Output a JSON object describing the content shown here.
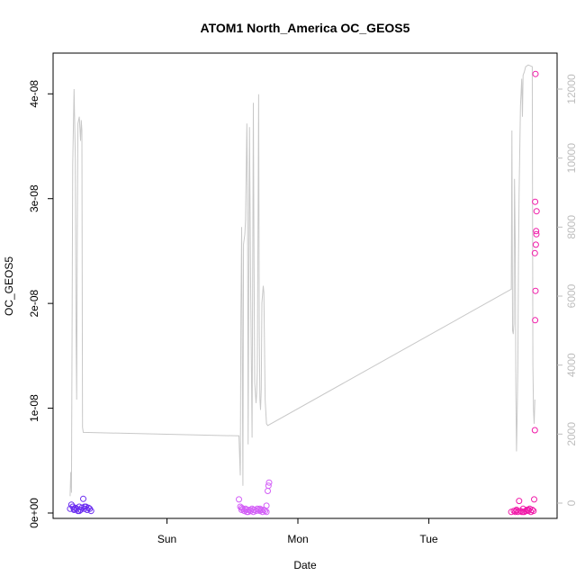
{
  "chart_data": {
    "type": "scatter",
    "title": "ATOM1 North_America OC_GEOS5",
    "xlabel": "Date",
    "ylabel": "OC_GEOS5",
    "x_ticks": [
      "Sun",
      "Mon",
      "Tue"
    ],
    "x_tick_days": [
      1,
      2,
      3
    ],
    "xlim_days": [
      0.13,
      3.98
    ],
    "ylim": [
      0,
      4.2e-08
    ],
    "y_ticks": [
      "0e+00",
      "1e-08",
      "2e-08",
      "3e-08",
      "4e-08"
    ],
    "y_tick_values": [
      0,
      1e-08,
      2e-08,
      3e-08,
      4e-08
    ],
    "y2lim": [
      0,
      12800
    ],
    "y2_ticks": [
      "0",
      "2000",
      "4000",
      "6000",
      "8000",
      "10000",
      "12000"
    ],
    "y2_tick_values": [
      0,
      2000,
      4000,
      6000,
      8000,
      10000,
      12000
    ],
    "grid": false,
    "colors": {
      "points_day1": "#6a2cf0",
      "points_day2": "#d35ef7",
      "points_day3": "#f01aa8",
      "altitude_line": "#c8c8c8",
      "axis": "#000000",
      "right_axis": "#bdbdbd"
    },
    "series": [
      {
        "points": [
          [
            0.26,
            4e-10
          ],
          [
            0.27,
            8e-10
          ],
          [
            0.28,
            6e-10
          ],
          [
            0.29,
            3e-10
          ],
          [
            0.3,
            5e-10
          ],
          [
            0.31,
            4e-10
          ],
          [
            0.32,
            2e-10
          ],
          [
            0.33,
            6e-10
          ],
          [
            0.34,
            3e-10
          ],
          [
            0.35,
            5e-10
          ],
          [
            0.36,
            1.35e-09
          ],
          [
            0.37,
            4e-10
          ],
          [
            0.38,
            6e-10
          ],
          [
            0.39,
            3e-10
          ],
          [
            0.4,
            5e-10
          ],
          [
            0.41,
            4e-10
          ],
          [
            0.42,
            2e-10
          ],
          [
            0.29,
            4e-10
          ],
          [
            0.33,
            2e-10
          ],
          [
            0.37,
            6e-10
          ]
        ]
      },
      {
        "points": [
          [
            1.55,
            1.3e-09
          ],
          [
            1.56,
            6e-10
          ],
          [
            1.57,
            3e-10
          ],
          [
            1.58,
            4e-10
          ],
          [
            1.59,
            2e-10
          ],
          [
            1.6,
            4e-10
          ],
          [
            1.61,
            3e-10
          ],
          [
            1.62,
            1e-10
          ],
          [
            1.63,
            3e-10
          ],
          [
            1.64,
            2e-10
          ],
          [
            1.65,
            4e-10
          ],
          [
            1.66,
            1e-10
          ],
          [
            1.67,
            3e-10
          ],
          [
            1.68,
            2e-10
          ],
          [
            1.69,
            4e-10
          ],
          [
            1.7,
            3e-10
          ],
          [
            1.71,
            2e-10
          ],
          [
            1.72,
            3e-10
          ],
          [
            1.73,
            1e-10
          ],
          [
            1.74,
            3e-10
          ],
          [
            1.75,
            2e-10
          ],
          [
            1.76,
            7e-10
          ],
          [
            1.77,
            2.1e-09
          ],
          [
            1.775,
            2.6e-09
          ],
          [
            1.78,
            2.9e-09
          ],
          [
            1.57,
            5e-10
          ],
          [
            1.61,
            1e-10
          ],
          [
            1.66,
            3e-10
          ],
          [
            1.71,
            4e-10
          ],
          [
            1.76,
            1e-10
          ]
        ]
      },
      {
        "points": [
          [
            3.63,
            1e-10
          ],
          [
            3.65,
            2e-10
          ],
          [
            3.66,
            1e-10
          ],
          [
            3.67,
            3e-10
          ],
          [
            3.68,
            1e-10
          ],
          [
            3.69,
            1.15e-09
          ],
          [
            3.7,
            2e-10
          ],
          [
            3.71,
            1e-10
          ],
          [
            3.72,
            4e-10
          ],
          [
            3.73,
            1e-10
          ],
          [
            3.74,
            2e-10
          ],
          [
            3.75,
            3e-10
          ],
          [
            3.76,
            2e-10
          ],
          [
            3.77,
            4e-10
          ],
          [
            3.78,
            1e-10
          ],
          [
            3.79,
            3e-10
          ],
          [
            3.8,
            2e-10
          ],
          [
            3.805,
            1.3e-09
          ],
          [
            3.81,
            7.9e-09
          ],
          [
            3.812,
            1.84e-08
          ],
          [
            3.815,
            2.12e-08
          ],
          [
            3.81,
            2.48e-08
          ],
          [
            3.812,
            2.97e-08
          ],
          [
            3.818,
            2.56e-08
          ],
          [
            3.82,
            2.69e-08
          ],
          [
            3.822,
            2.66e-08
          ],
          [
            3.823,
            2.88e-08
          ],
          [
            3.815,
            4.19e-08
          ],
          [
            3.67,
            2e-10
          ],
          [
            3.72,
            1e-10
          ],
          [
            3.76,
            3e-10
          ]
        ]
      }
    ],
    "altitude_line": [
      [
        0.26,
        200
      ],
      [
        0.265,
        900
      ],
      [
        0.27,
        300
      ],
      [
        0.28,
        9800
      ],
      [
        0.29,
        12000
      ],
      [
        0.3,
        10000
      ],
      [
        0.305,
        5000
      ],
      [
        0.31,
        3000
      ],
      [
        0.315,
        8000
      ],
      [
        0.32,
        11000
      ],
      [
        0.33,
        11200
      ],
      [
        0.34,
        10500
      ],
      [
        0.345,
        11100
      ],
      [
        0.35,
        10800
      ],
      [
        0.355,
        2200
      ],
      [
        0.36,
        2050
      ],
      [
        1.55,
        1950
      ],
      [
        1.56,
        800
      ],
      [
        1.565,
        5500
      ],
      [
        1.57,
        8000
      ],
      [
        1.58,
        500
      ],
      [
        1.585,
        7500
      ],
      [
        1.595,
        7800
      ],
      [
        1.6,
        8200
      ],
      [
        1.61,
        11000
      ],
      [
        1.615,
        9000
      ],
      [
        1.62,
        1700
      ],
      [
        1.63,
        10900
      ],
      [
        1.64,
        6000
      ],
      [
        1.645,
        3800
      ],
      [
        1.65,
        1900
      ],
      [
        1.66,
        11600
      ],
      [
        1.665,
        6800
      ],
      [
        1.67,
        3500
      ],
      [
        1.68,
        2900
      ],
      [
        1.685,
        3200
      ],
      [
        1.69,
        3800
      ],
      [
        1.7,
        11850
      ],
      [
        1.705,
        5000
      ],
      [
        1.71,
        3000
      ],
      [
        1.715,
        2700
      ],
      [
        1.72,
        3300
      ],
      [
        1.725,
        5800
      ],
      [
        1.735,
        6300
      ],
      [
        1.74,
        6100
      ],
      [
        1.75,
        3000
      ],
      [
        1.76,
        2300
      ],
      [
        1.77,
        2250
      ],
      [
        3.63,
        6200
      ],
      [
        3.635,
        10800
      ],
      [
        3.64,
        5000
      ],
      [
        3.645,
        4900
      ],
      [
        3.65,
        5200
      ],
      [
        3.655,
        9400
      ],
      [
        3.66,
        7500
      ],
      [
        3.665,
        3200
      ],
      [
        3.67,
        1500
      ],
      [
        3.675,
        2500
      ],
      [
        3.68,
        4000
      ],
      [
        3.685,
        7000
      ],
      [
        3.69,
        9000
      ],
      [
        3.7,
        11500
      ],
      [
        3.71,
        12300
      ],
      [
        3.715,
        11200
      ],
      [
        3.72,
        12400
      ],
      [
        3.73,
        12500
      ],
      [
        3.74,
        12650
      ],
      [
        3.76,
        12700
      ],
      [
        3.79,
        12650
      ],
      [
        3.795,
        4000
      ],
      [
        3.8,
        2700
      ],
      [
        3.805,
        2300
      ],
      [
        3.81,
        3000
      ]
    ]
  }
}
